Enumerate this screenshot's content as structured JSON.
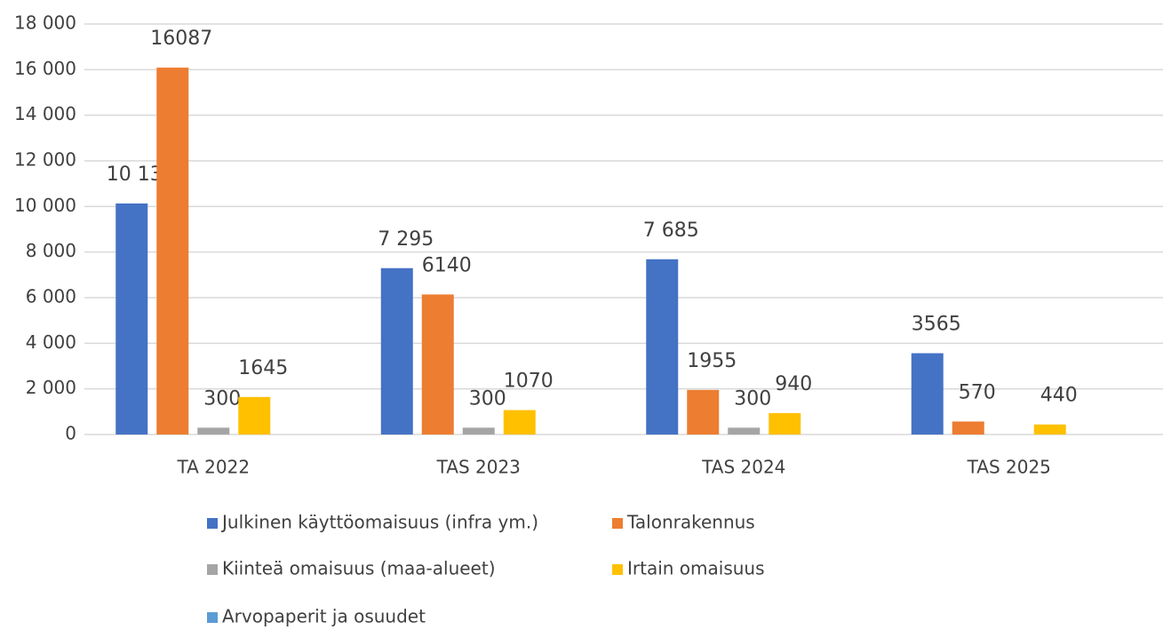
{
  "chart_data": {
    "type": "bar",
    "categories": [
      "TA 2022",
      "TAS 2023",
      "TAS 2024",
      "TAS 2025"
    ],
    "series": [
      {
        "name": "Julkinen käyttöomaisuus (infra ym.)",
        "color": "#4472c4",
        "values": [
          10130,
          7295,
          7685,
          3565
        ],
        "value_labels": [
          "10 130",
          "7 295",
          "7 685",
          "3565"
        ]
      },
      {
        "name": "Talonrakennus",
        "color": "#ed7d31",
        "values": [
          16087,
          6140,
          1955,
          570
        ]
      },
      {
        "name": "Kiinteä omaisuus (maa-alueet)",
        "color": "#a5a5a5",
        "values": [
          300,
          300,
          300,
          null
        ]
      },
      {
        "name": "Irtain omaisuus",
        "color": "#ffc000",
        "values": [
          1645,
          1070,
          940,
          440
        ]
      },
      {
        "name": "Arvopaperit ja osuudet",
        "color": "#5b9bd5",
        "values": [
          null,
          null,
          null,
          null
        ]
      }
    ],
    "ylim": [
      0,
      18000
    ],
    "yticks": [
      0,
      {
        "value": 2000,
        "label": "2 000"
      },
      {
        "value": 4000,
        "label": "4 000"
      },
      {
        "value": 6000,
        "label": "6 000"
      },
      {
        "value": 8000,
        "label": "8 000"
      },
      {
        "value": 10000,
        "label": "10 000"
      },
      {
        "value": 12000,
        "label": "12 000"
      },
      {
        "value": 14000,
        "label": "14 000"
      },
      {
        "value": 16000,
        "label": "16 000"
      },
      {
        "value": 18000,
        "label": "18 000"
      }
    ],
    "grid": true
  }
}
